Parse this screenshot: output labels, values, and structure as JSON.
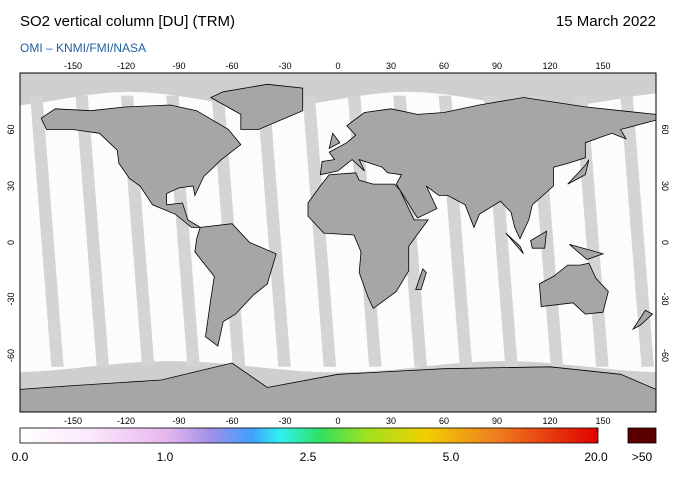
{
  "header": {
    "title": "SO2 vertical column [DU] (TRM)",
    "date": "15 March 2022",
    "credits": "OMI  –  KNMI/FMI/NASA"
  },
  "map": {
    "lon_ticks": [
      -150,
      -120,
      -90,
      -60,
      -30,
      0,
      30,
      60,
      90,
      120,
      150
    ],
    "lat_ticks": [
      60,
      30,
      0,
      -30,
      -60
    ]
  },
  "colorbar": {
    "labels": [
      "0.0",
      "1.0",
      "2.5",
      "5.0",
      "20.0"
    ],
    "over_label": ">50"
  }
}
